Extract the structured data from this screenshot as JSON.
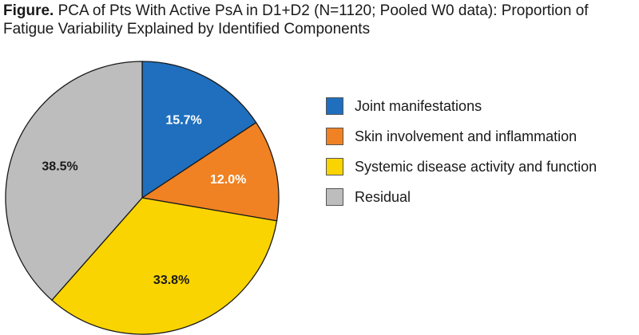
{
  "title": {
    "prefix": "Figure.",
    "text": "PCA of Pts With Active PsA in D1+D2 (N=1120; Pooled W0 data): Proportion of Fatigue Variability Explained by Identified Components"
  },
  "chart_data": {
    "type": "pie",
    "start": "12 o'clock",
    "direction": "clockwise",
    "slices": [
      {
        "label": "Joint manifestations",
        "value": 15.7,
        "display": "15.7%",
        "color": "#1f6fbe",
        "label_color": "#ffffff"
      },
      {
        "label": "Skin involvement and inflammation",
        "value": 12.0,
        "display": "12.0%",
        "color": "#f08223",
        "label_color": "#ffffff"
      },
      {
        "label": "Systemic disease activity and function",
        "value": 33.8,
        "display": "33.8%",
        "color": "#fad400",
        "label_color": "#1a1a1a"
      },
      {
        "label": "Residual",
        "value": 38.5,
        "display": "38.5%",
        "color": "#bdbdbd",
        "label_color": "#1a1a1a"
      }
    ],
    "legend_position": "right"
  }
}
